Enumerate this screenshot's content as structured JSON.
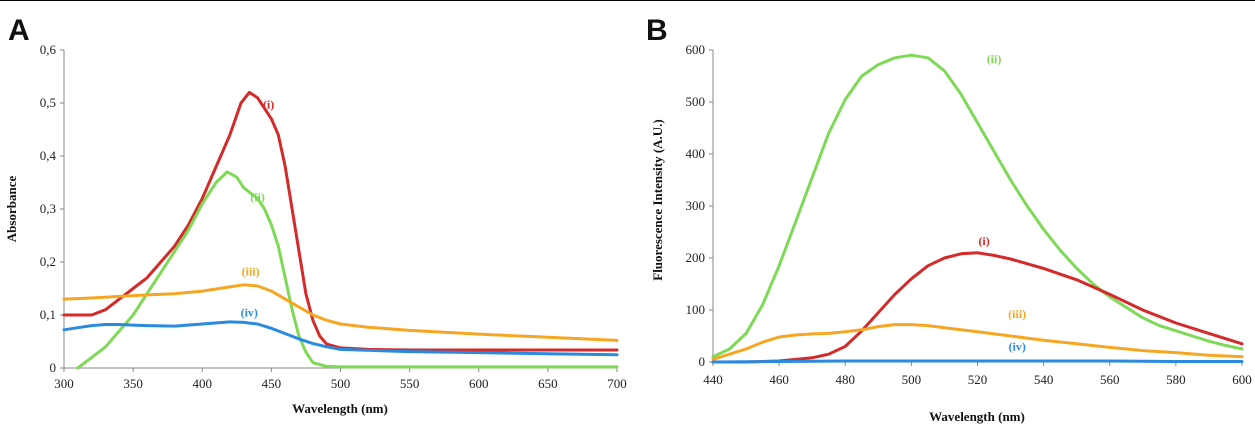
{
  "chart_data": [
    {
      "type": "line",
      "panel": "A",
      "xlabel": "Wavelength (nm)",
      "ylabel": "Absorbance",
      "xlim": [
        300,
        700
      ],
      "ylim": [
        0,
        0.6
      ],
      "xticks": [
        300,
        350,
        400,
        450,
        500,
        550,
        600,
        650,
        700
      ],
      "yticks": [
        0,
        0.1,
        0.2,
        0.3,
        0.4,
        0.5,
        0.6
      ],
      "ytick_labels": [
        "0",
        "0,1",
        "0,2",
        "0,3",
        "0,4",
        "0,5",
        "0,6"
      ],
      "series": [
        {
          "name": "(i)",
          "color": "#d42a2a",
          "label_pos": [
            448,
            0.49
          ],
          "x": [
            300,
            310,
            320,
            330,
            340,
            350,
            360,
            370,
            380,
            390,
            400,
            410,
            420,
            428,
            434,
            440,
            445,
            450,
            455,
            460,
            465,
            470,
            475,
            480,
            485,
            490,
            500,
            520,
            550,
            600,
            650,
            700
          ],
          "y": [
            0.1,
            0.1,
            0.1,
            0.11,
            0.13,
            0.15,
            0.17,
            0.2,
            0.23,
            0.27,
            0.32,
            0.38,
            0.44,
            0.5,
            0.52,
            0.51,
            0.49,
            0.47,
            0.44,
            0.38,
            0.3,
            0.22,
            0.14,
            0.09,
            0.06,
            0.045,
            0.038,
            0.035,
            0.034,
            0.034,
            0.034,
            0.034
          ]
        },
        {
          "name": "(ii)",
          "color": "#7ed957",
          "label_pos": [
            440,
            0.315
          ],
          "x": [
            310,
            320,
            330,
            340,
            350,
            360,
            370,
            380,
            390,
            400,
            410,
            418,
            425,
            430,
            435,
            440,
            445,
            450,
            455,
            460,
            465,
            470,
            475,
            480,
            490,
            500,
            550,
            600,
            650,
            700
          ],
          "y": [
            0.0,
            0.02,
            0.04,
            0.07,
            0.1,
            0.14,
            0.18,
            0.22,
            0.26,
            0.31,
            0.35,
            0.37,
            0.36,
            0.34,
            0.33,
            0.32,
            0.3,
            0.27,
            0.23,
            0.17,
            0.11,
            0.06,
            0.03,
            0.01,
            0.003,
            0.002,
            0.002,
            0.002,
            0.002,
            0.002
          ]
        },
        {
          "name": "(iii)",
          "color": "#f5a623",
          "label_pos": [
            435,
            0.175
          ],
          "x": [
            300,
            320,
            340,
            360,
            380,
            400,
            420,
            430,
            440,
            450,
            460,
            470,
            480,
            490,
            500,
            520,
            550,
            600,
            650,
            700
          ],
          "y": [
            0.13,
            0.132,
            0.135,
            0.138,
            0.14,
            0.145,
            0.153,
            0.157,
            0.155,
            0.145,
            0.13,
            0.115,
            0.1,
            0.09,
            0.083,
            0.077,
            0.071,
            0.064,
            0.058,
            0.052
          ]
        },
        {
          "name": "(iv)",
          "color": "#2a8ae0",
          "label_pos": [
            434,
            0.097
          ],
          "x": [
            300,
            310,
            320,
            330,
            340,
            350,
            360,
            380,
            400,
            420,
            430,
            440,
            450,
            460,
            470,
            480,
            490,
            500,
            550,
            600,
            650,
            700
          ],
          "y": [
            0.072,
            0.076,
            0.08,
            0.082,
            0.082,
            0.081,
            0.08,
            0.079,
            0.083,
            0.087,
            0.086,
            0.083,
            0.075,
            0.065,
            0.055,
            0.046,
            0.04,
            0.035,
            0.031,
            0.029,
            0.027,
            0.025
          ]
        }
      ]
    },
    {
      "type": "line",
      "panel": "B",
      "xlabel": "Wavelength (nm)",
      "ylabel": "Fluorescence Intensity (A.U.)",
      "xlim": [
        440,
        600
      ],
      "ylim": [
        0,
        600
      ],
      "xticks": [
        440,
        460,
        480,
        500,
        520,
        540,
        560,
        580,
        600
      ],
      "yticks": [
        0,
        100,
        200,
        300,
        400,
        500,
        600
      ],
      "ytick_labels": [
        "0",
        "100",
        "200",
        "300",
        "400",
        "500",
        "600"
      ],
      "series": [
        {
          "name": "(ii)",
          "color": "#7ed957",
          "label_pos": [
            525,
            575
          ],
          "x": [
            440,
            445,
            450,
            455,
            460,
            465,
            470,
            475,
            480,
            485,
            490,
            495,
            500,
            505,
            510,
            515,
            520,
            525,
            530,
            535,
            540,
            545,
            550,
            555,
            560,
            565,
            570,
            575,
            580,
            585,
            590,
            595,
            600
          ],
          "y": [
            10,
            25,
            55,
            110,
            185,
            270,
            355,
            440,
            505,
            550,
            572,
            585,
            590,
            585,
            560,
            515,
            460,
            405,
            350,
            300,
            255,
            215,
            180,
            150,
            125,
            105,
            85,
            70,
            60,
            50,
            40,
            32,
            25
          ]
        },
        {
          "name": "(i)",
          "color": "#d42a2a",
          "label_pos": [
            522,
            225
          ],
          "x": [
            440,
            450,
            460,
            470,
            475,
            480,
            485,
            490,
            495,
            500,
            505,
            510,
            515,
            520,
            525,
            530,
            540,
            550,
            560,
            570,
            580,
            590,
            600
          ],
          "y": [
            0,
            0,
            2,
            8,
            15,
            30,
            60,
            95,
            130,
            160,
            185,
            200,
            208,
            210,
            205,
            198,
            180,
            158,
            130,
            100,
            75,
            55,
            35
          ]
        },
        {
          "name": "(iii)",
          "color": "#f5a623",
          "label_pos": [
            532,
            85
          ],
          "x": [
            440,
            445,
            450,
            455,
            460,
            465,
            470,
            475,
            480,
            485,
            490,
            495,
            500,
            505,
            510,
            520,
            530,
            540,
            550,
            560,
            570,
            580,
            590,
            600
          ],
          "y": [
            5,
            15,
            25,
            38,
            48,
            52,
            54,
            55,
            58,
            62,
            68,
            72,
            72,
            70,
            66,
            58,
            50,
            42,
            35,
            28,
            22,
            18,
            13,
            10
          ]
        },
        {
          "name": "(iv)",
          "color": "#2a8ae0",
          "label_pos": [
            532,
            22
          ],
          "x": [
            440,
            460,
            480,
            500,
            520,
            540,
            560,
            580,
            600
          ],
          "y": [
            0,
            1,
            2,
            2,
            2,
            2,
            2,
            1,
            1
          ]
        }
      ]
    }
  ]
}
